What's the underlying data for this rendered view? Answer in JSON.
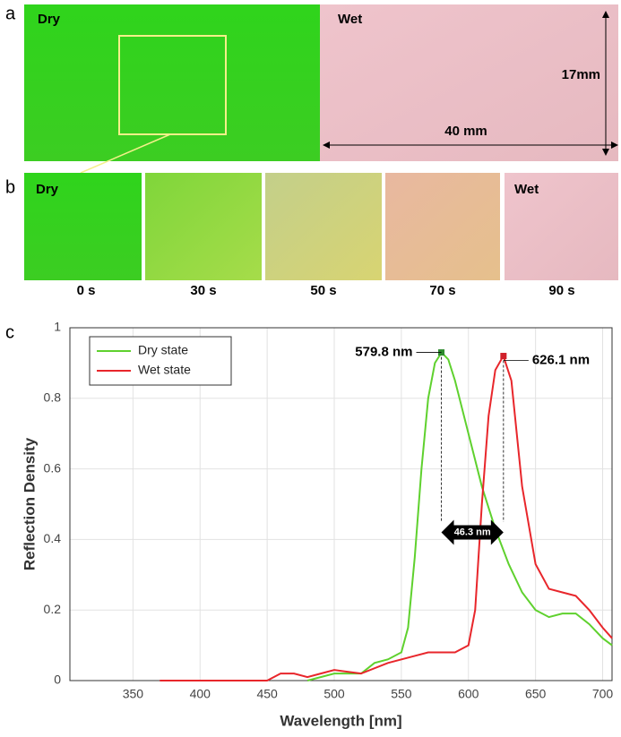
{
  "figure": {
    "panel_a": {
      "label": "a",
      "dry": "Dry",
      "wet": "Wet",
      "height": "17mm",
      "width": "40 mm"
    },
    "panel_b": {
      "label": "b",
      "dry": "Dry",
      "wet": "Wet",
      "times": [
        "0 s",
        "30 s",
        "50 s",
        "70 s",
        "90 s"
      ]
    },
    "panel_c_label": "c"
  },
  "chart_data": {
    "type": "line",
    "x_label": "Wavelength [nm]",
    "y_label": "Reflection Density",
    "xlim": [
      303,
      707
    ],
    "ylim": [
      0,
      1
    ],
    "xticks": [
      350,
      400,
      450,
      500,
      550,
      600,
      650,
      700
    ],
    "yticks": [
      0,
      0.2,
      0.4,
      0.6,
      0.8,
      1
    ],
    "grid": true,
    "legend": "upper left",
    "series": [
      {
        "name": "Dry state",
        "color": "#5fd12e",
        "x": [
          480,
          500,
          520,
          530,
          540,
          550,
          555,
          560,
          565,
          570,
          575,
          580,
          585,
          590,
          600,
          610,
          620,
          630,
          640,
          650,
          660,
          670,
          680,
          690,
          700,
          707
        ],
        "values": [
          0,
          0.02,
          0.02,
          0.05,
          0.06,
          0.08,
          0.15,
          0.35,
          0.6,
          0.8,
          0.9,
          0.93,
          0.91,
          0.85,
          0.7,
          0.55,
          0.43,
          0.33,
          0.25,
          0.2,
          0.18,
          0.19,
          0.19,
          0.16,
          0.12,
          0.1
        ]
      },
      {
        "name": "Wet state",
        "color": "#e8262b",
        "x": [
          370,
          450,
          460,
          470,
          480,
          490,
          500,
          520,
          540,
          560,
          570,
          580,
          590,
          600,
          605,
          610,
          615,
          620,
          626,
          632,
          640,
          650,
          660,
          670,
          680,
          690,
          700,
          707
        ],
        "values": [
          0,
          0,
          0.02,
          0.02,
          0.01,
          0.02,
          0.03,
          0.02,
          0.05,
          0.07,
          0.08,
          0.08,
          0.08,
          0.1,
          0.2,
          0.5,
          0.75,
          0.88,
          0.92,
          0.85,
          0.55,
          0.33,
          0.26,
          0.25,
          0.24,
          0.2,
          0.15,
          0.12
        ]
      }
    ],
    "peaks": [
      {
        "x": 579.8,
        "y": 0.93,
        "label": "579.8 nm",
        "color": "#2e8b2e"
      },
      {
        "x": 626.1,
        "y": 0.92,
        "label": "626.1 nm",
        "color": "#d0202a"
      }
    ],
    "shift_label": "46.3 nm"
  }
}
